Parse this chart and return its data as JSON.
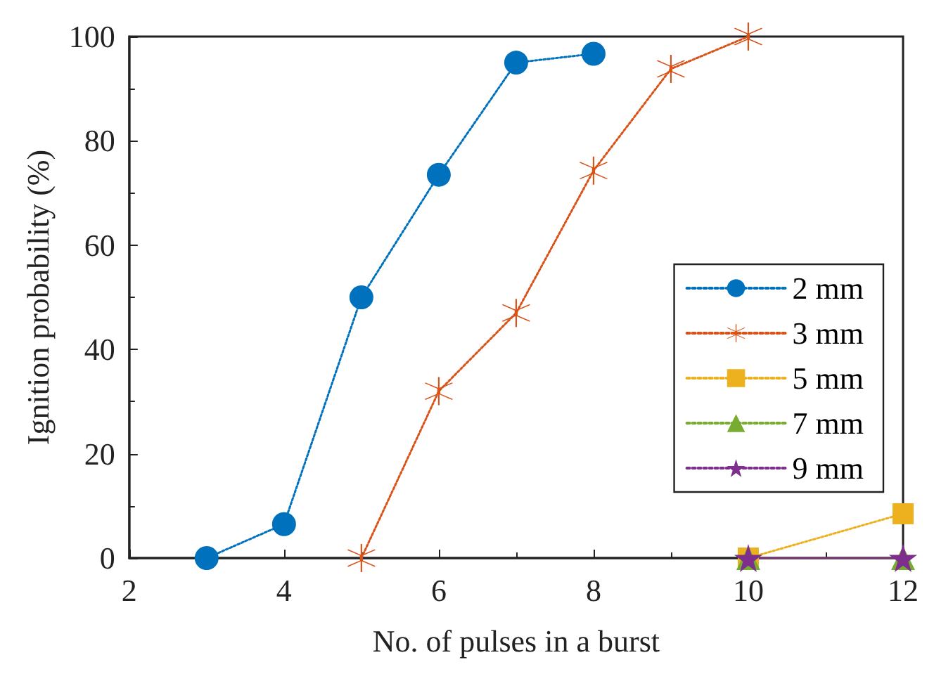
{
  "chart_data": {
    "type": "line",
    "xlabel": "No. of pulses in a burst",
    "ylabel": "Ignition probability (%)",
    "xlim": [
      2,
      12
    ],
    "xticks": [
      2,
      4,
      6,
      8,
      10,
      12
    ],
    "ylim": [
      0,
      100
    ],
    "yticks": [
      0,
      20,
      40,
      60,
      80,
      100
    ],
    "grid": false,
    "legend": "right",
    "line_style": "dotted",
    "series": [
      {
        "name": "2 mm",
        "color": "#0072bd",
        "marker": "circle",
        "x": [
          3,
          4,
          5,
          6,
          7,
          8
        ],
        "values": [
          0,
          6.5,
          50,
          73.5,
          95,
          96.7
        ]
      },
      {
        "name": "3 mm",
        "color": "#d95319",
        "marker": "cross",
        "x": [
          5,
          6,
          7,
          8,
          9,
          10
        ],
        "values": [
          0,
          32,
          47,
          74.3,
          93.8,
          100
        ]
      },
      {
        "name": "5 mm",
        "color": "#edb120",
        "marker": "square",
        "x": [
          10,
          12
        ],
        "values": [
          0,
          8.5
        ]
      },
      {
        "name": "7 mm",
        "color": "#77ac30",
        "marker": "triangle",
        "x": [
          10,
          12
        ],
        "values": [
          0,
          0
        ]
      },
      {
        "name": "9 mm",
        "color": "#7e2f8e",
        "marker": "star",
        "x": [
          10,
          12
        ],
        "values": [
          0,
          0
        ]
      }
    ]
  }
}
